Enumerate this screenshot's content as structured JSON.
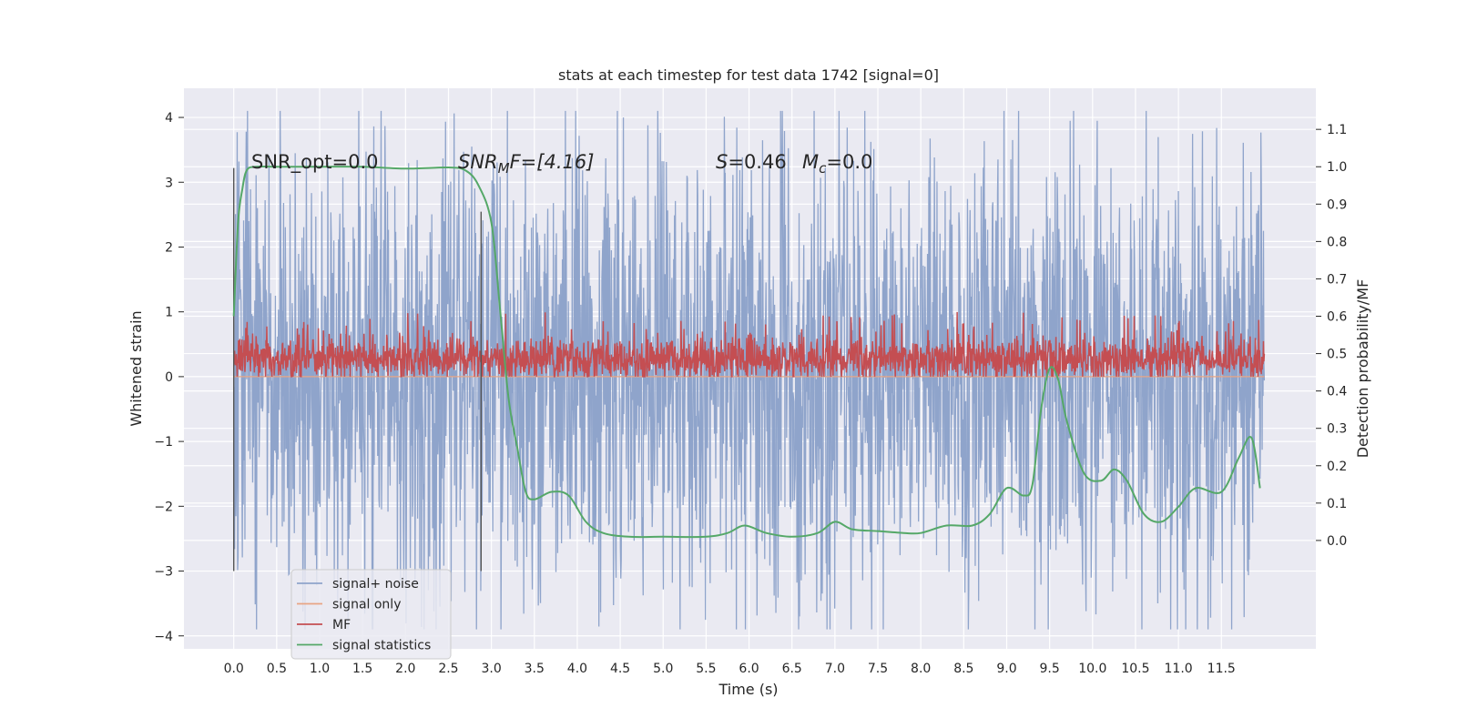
{
  "chart_data": {
    "type": "line",
    "title": "stats at each timestep for test data 1742 [signal=0]",
    "xlabel": "Time (s)",
    "ylabel": "Whitened strain",
    "y2label": "Detection probability/MF",
    "xlim": [
      -0.58,
      12.6
    ],
    "ylim": [
      -4.2,
      4.45
    ],
    "y2lim": [
      -0.29,
      1.21
    ],
    "xticks": [
      0.0,
      0.5,
      1.0,
      1.5,
      2.0,
      2.5,
      3.0,
      3.5,
      4.0,
      4.5,
      5.0,
      5.5,
      6.0,
      6.5,
      7.0,
      7.5,
      8.0,
      8.5,
      9.0,
      9.5,
      10.0,
      10.5,
      11.0,
      11.5
    ],
    "xtick_labels": [
      "0.0",
      "0.5",
      "1.0",
      "1.5",
      "2.0",
      "2.5",
      "3.0",
      "3.5",
      "4.0",
      "4.5",
      "5.0",
      "5.5",
      "6.0",
      "6.5",
      "7.0",
      "7.5",
      "8.0",
      "8.5",
      "9.0",
      "9.5",
      "10.0",
      "10.5",
      "11.0",
      "11.5"
    ],
    "yticks": [
      -4,
      -3,
      -2,
      -1,
      0,
      1,
      2,
      3,
      4
    ],
    "ytick_labels": [
      "−4",
      "−3",
      "−2",
      "−1",
      "0",
      "1",
      "2",
      "3",
      "4"
    ],
    "y2ticks": [
      0.0,
      0.1,
      0.2,
      0.3,
      0.4,
      0.5,
      0.6,
      0.7,
      0.8,
      0.9,
      1.0,
      1.1
    ],
    "y2tick_labels": [
      "0.0",
      "0.1",
      "0.2",
      "0.3",
      "0.4",
      "0.5",
      "0.6",
      "0.7",
      "0.8",
      "0.9",
      "1.0",
      "1.1"
    ],
    "grid": true,
    "legend_position": "lower-left",
    "annotations": {
      "snr_opt": "SNR_opt=0.0",
      "snr_mf": "SNR",
      "snr_mf_sub": "M",
      "snr_mf_rest": "F=[4.16]",
      "s_val": "S",
      "s_rest": "=0.46",
      "mc": "M",
      "mc_sub": "c",
      "mc_rest": "=0.0"
    },
    "vlines": [
      0.0,
      2.88
    ],
    "vline_range": [
      -3.0,
      3.22
    ],
    "series": [
      {
        "name": "signal+ noise",
        "color": "#8fa4cb",
        "axis": "left",
        "t_range": [
          0.0,
          12.0
        ],
        "samples": 2400,
        "typical_range": [
          -1.8,
          1.8
        ],
        "envelope_max": 4.1,
        "envelope_min": -3.9
      },
      {
        "name": "signal only",
        "color": "#e8a584",
        "axis": "left",
        "t": [
          0.0,
          12.0
        ],
        "values": [
          0.0,
          0.0
        ]
      },
      {
        "name": "MF",
        "color": "#c44e52",
        "axis": "left",
        "t_range": [
          0.0,
          12.0
        ],
        "samples": 2400,
        "typical_range": [
          0.0,
          0.75
        ],
        "envelope_max": 1.0,
        "envelope_min": 0.0
      },
      {
        "name": "signal statistics",
        "color": "#55a868",
        "axis": "right",
        "t": [
          0.0,
          0.05,
          0.1,
          0.15,
          0.25,
          0.5,
          1.0,
          1.5,
          2.0,
          2.5,
          2.7,
          2.85,
          3.0,
          3.1,
          3.2,
          3.3,
          3.4,
          3.5,
          3.7,
          3.9,
          4.1,
          4.3,
          4.6,
          5.0,
          5.5,
          5.75,
          5.95,
          6.2,
          6.5,
          6.8,
          7.0,
          7.2,
          7.5,
          7.8,
          8.0,
          8.3,
          8.6,
          8.8,
          9.0,
          9.2,
          9.3,
          9.4,
          9.5,
          9.6,
          9.7,
          9.9,
          10.1,
          10.25,
          10.4,
          10.6,
          10.8,
          11.0,
          11.2,
          11.5,
          11.7,
          11.85,
          11.95
        ],
        "values": [
          0.6,
          0.85,
          0.94,
          0.99,
          1.0,
          1.0,
          1.0,
          1.0,
          0.995,
          0.998,
          0.99,
          0.95,
          0.85,
          0.62,
          0.38,
          0.25,
          0.13,
          0.11,
          0.13,
          0.12,
          0.05,
          0.02,
          0.01,
          0.01,
          0.01,
          0.02,
          0.04,
          0.02,
          0.01,
          0.02,
          0.05,
          0.03,
          0.025,
          0.02,
          0.02,
          0.04,
          0.04,
          0.07,
          0.14,
          0.12,
          0.15,
          0.35,
          0.46,
          0.43,
          0.32,
          0.18,
          0.16,
          0.19,
          0.16,
          0.07,
          0.05,
          0.09,
          0.14,
          0.13,
          0.22,
          0.275,
          0.14
        ]
      }
    ]
  }
}
